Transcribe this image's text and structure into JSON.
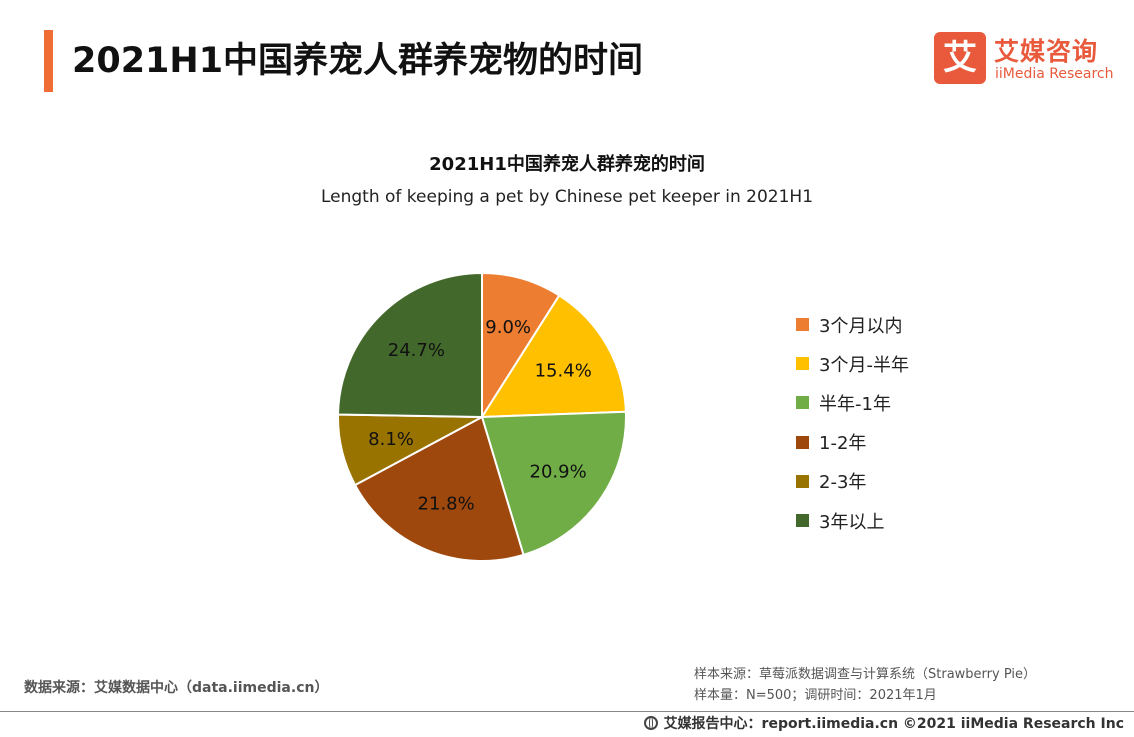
{
  "header": {
    "page_title": "2021H1中国养宠人群养宠物的时间",
    "logo_mark": "艾",
    "logo_cn": "艾媒咨询",
    "logo_en": "iiMedia Research"
  },
  "chart_data": {
    "type": "pie",
    "title": "2021H1中国养宠人群养宠的时间",
    "subtitle": "Length of keeping a pet by Chinese pet keeper in 2021H1",
    "categories": [
      "3个月以内",
      "3个月-半年",
      "半年-1年",
      "1-2年",
      "2-3年",
      "3年以上"
    ],
    "values": [
      9.0,
      15.4,
      20.9,
      21.8,
      8.1,
      24.7
    ],
    "value_labels": [
      "9.0%",
      "15.4%",
      "20.9%",
      "21.8%",
      "8.1%",
      "24.7%"
    ],
    "colors": [
      "#ed7d31",
      "#ffc000",
      "#70ad47",
      "#9e480e",
      "#997300",
      "#43682b"
    ],
    "unit": "%",
    "legend_position": "right"
  },
  "source": {
    "left": "数据来源：艾媒数据中心（data.iimedia.cn）",
    "sample_source": "样本来源：草莓派数据调查与计算系统（Strawberry Pie）",
    "sample_size": "样本量：N=500；调研时间：2021年1月"
  },
  "footer": {
    "text": "艾媒报告中心：report.iimedia.cn  ©2021  iiMedia Research  Inc"
  }
}
